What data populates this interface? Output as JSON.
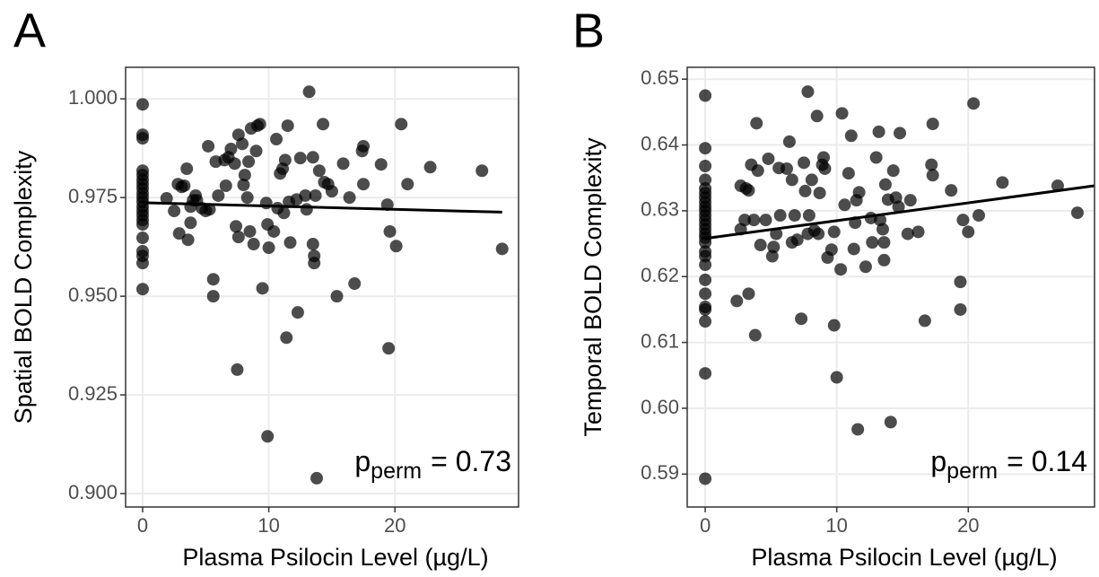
{
  "chart_data": [
    {
      "type": "scatter",
      "panel_label": "A",
      "xlabel": "Plasma Psilocin Level (µg/L)",
      "ylabel": "Spatial BOLD Complexity",
      "color": "#000000",
      "opacity": 0.7,
      "grid": true,
      "xlim": [
        -1.35,
        29.8
      ],
      "ylim": [
        0.8966,
        1.008
      ],
      "xticks": [
        0,
        10,
        20
      ],
      "yticks": [
        {
          "value": 0.9,
          "label": "0.900"
        },
        0.925,
        {
          "value": 0.95,
          "label": "0.950"
        },
        0.975,
        {
          "value": 1,
          "label": "1.000"
        }
      ],
      "x": [
        0,
        0,
        0,
        0,
        0,
        0,
        0,
        0,
        0,
        0,
        0,
        0,
        0,
        0,
        0,
        0,
        0,
        0,
        0,
        0,
        0,
        1.9,
        2.5,
        2.8,
        2.9,
        3.1,
        3.3,
        3.5,
        3.6,
        3.8,
        3.8,
        4.0,
        4.2,
        4.3,
        4.7,
        5.0,
        5.2,
        5.3,
        5.6,
        5.6,
        5.8,
        6.0,
        6.5,
        6.6,
        6.8,
        7.0,
        7.3,
        7.4,
        7.5,
        7.6,
        7.6,
        7.9,
        8.0,
        8.1,
        8.3,
        8.4,
        8.5,
        8.6,
        8.8,
        9.0,
        9.1,
        9.3,
        9.5,
        9.8,
        9.9,
        9.9,
        10.0,
        10.4,
        10.6,
        10.7,
        10.9,
        11.1,
        11.2,
        11.3,
        11.4,
        11.5,
        11.6,
        11.7,
        12.2,
        12.3,
        12.5,
        12.9,
        13.0,
        13.2,
        13.5,
        13.5,
        13.6,
        13.6,
        13.7,
        13.8,
        14.0,
        14.3,
        14.4,
        14.7,
        15.0,
        15.4,
        15.9,
        16.4,
        16.8,
        17.4,
        17.5,
        17.5,
        18.9,
        19.4,
        19.5,
        19.6,
        20.1,
        20.5,
        21.0,
        22.8,
        26.9,
        28.5
      ],
      "y": [
        0.9986,
        0.9909,
        0.99,
        0.9818,
        0.9807,
        0.9795,
        0.9784,
        0.9773,
        0.9761,
        0.975,
        0.9739,
        0.9727,
        0.9716,
        0.9705,
        0.9693,
        0.9682,
        0.9648,
        0.9614,
        0.9602,
        0.9584,
        0.9518,
        0.9748,
        0.9716,
        0.9784,
        0.9659,
        0.9777,
        0.978,
        0.9823,
        0.9643,
        0.9686,
        0.9727,
        0.9743,
        0.9755,
        0.9743,
        0.9723,
        0.9716,
        0.988,
        0.972,
        0.9543,
        0.95,
        0.9841,
        0.9755,
        0.9845,
        0.978,
        0.9852,
        0.9873,
        0.9836,
        0.9677,
        0.9314,
        0.9909,
        0.965,
        0.9886,
        0.9782,
        0.9807,
        0.975,
        0.9841,
        0.9664,
        0.9925,
        0.9632,
        0.9868,
        0.9932,
        0.9936,
        0.952,
        0.9736,
        0.9145,
        0.9682,
        0.9623,
        0.9664,
        0.9898,
        0.9723,
        0.9811,
        0.9823,
        0.9711,
        0.9845,
        0.9395,
        0.9932,
        0.9739,
        0.9636,
        0.9745,
        0.9459,
        0.985,
        0.9755,
        0.972,
        1.0018,
        0.9852,
        0.9632,
        0.9602,
        0.9584,
        0.9755,
        0.9039,
        0.9818,
        0.9936,
        0.9789,
        0.9784,
        0.9766,
        0.95,
        0.9836,
        0.975,
        0.9532,
        0.9868,
        0.988,
        0.9784,
        0.9834,
        0.9732,
        0.9368,
        0.9664,
        0.9627,
        0.9936,
        0.9784,
        0.9827,
        0.9818,
        0.962
      ],
      "trend_line": {
        "x": [
          0,
          28.5
        ],
        "y": [
          0.9737,
          0.9713
        ]
      },
      "annotation": {
        "base": "p",
        "subscript": "perm",
        "text": "= 0.73"
      }
    },
    {
      "type": "scatter",
      "panel_label": "B",
      "xlabel": "Plasma Psilocin Level (µg/L)",
      "ylabel": "Temporal BOLD Complexity",
      "color": "#000000",
      "opacity": 0.7,
      "grid": true,
      "xlim": [
        -1.37,
        29.6
      ],
      "ylim": [
        0.585,
        0.6518
      ],
      "xticks": [
        0,
        10,
        20
      ],
      "yticks": [
        0.59,
        {
          "value": 0.6,
          "label": "0.60"
        },
        0.61,
        0.62,
        0.63,
        0.64,
        0.65
      ],
      "x": [
        0,
        0,
        0,
        0,
        0,
        0,
        0,
        0,
        0,
        0,
        0,
        0,
        0,
        0,
        0,
        0,
        0,
        0,
        0,
        0,
        0,
        0,
        0,
        0,
        0,
        0,
        0,
        2.4,
        2.7,
        2.7,
        3.0,
        3.1,
        3.3,
        3.3,
        3.5,
        3.7,
        3.8,
        3.9,
        4.0,
        4.2,
        4.6,
        4.8,
        5.1,
        5.2,
        5.4,
        5.6,
        5.7,
        6.2,
        6.4,
        6.6,
        6.6,
        6.8,
        7.0,
        7.3,
        7.5,
        7.6,
        7.8,
        7.8,
        7.9,
        8.1,
        8.3,
        8.5,
        8.6,
        8.7,
        8.9,
        9.0,
        9.1,
        9.3,
        9.6,
        9.8,
        9.8,
        10.0,
        10.3,
        10.4,
        10.6,
        10.9,
        11.1,
        11.3,
        11.4,
        11.5,
        11.6,
        11.7,
        12.2,
        12.6,
        12.7,
        13.0,
        13.2,
        13.3,
        13.5,
        13.6,
        13.6,
        13.7,
        13.9,
        14.1,
        14.3,
        14.5,
        14.7,
        14.8,
        15.4,
        15.6,
        16.2,
        16.7,
        17.2,
        17.3,
        17.3,
        18.7,
        19.4,
        19.4,
        19.6,
        20.0,
        20.4,
        20.8,
        22.6,
        26.8,
        28.3
      ],
      "y": [
        0.6475,
        0.6395,
        0.6368,
        0.6347,
        0.6334,
        0.6327,
        0.632,
        0.6313,
        0.6306,
        0.63,
        0.6293,
        0.6286,
        0.6279,
        0.6272,
        0.6265,
        0.6259,
        0.6252,
        0.6238,
        0.6231,
        0.6218,
        0.6195,
        0.6174,
        0.6154,
        0.615,
        0.6132,
        0.6053,
        0.5893,
        0.6163,
        0.6272,
        0.6338,
        0.6286,
        0.6334,
        0.6331,
        0.6174,
        0.637,
        0.6286,
        0.6111,
        0.6433,
        0.6361,
        0.6248,
        0.6286,
        0.6379,
        0.6231,
        0.6245,
        0.6265,
        0.6365,
        0.6293,
        0.6364,
        0.6405,
        0.6252,
        0.6347,
        0.6293,
        0.6256,
        0.6136,
        0.6373,
        0.633,
        0.6481,
        0.6265,
        0.6293,
        0.6347,
        0.627,
        0.6444,
        0.6265,
        0.6327,
        0.637,
        0.6381,
        0.6364,
        0.6229,
        0.6241,
        0.6268,
        0.6126,
        0.6047,
        0.6211,
        0.6448,
        0.6309,
        0.6357,
        0.6414,
        0.6242,
        0.6282,
        0.6316,
        0.5968,
        0.6328,
        0.6215,
        0.6289,
        0.6252,
        0.6381,
        0.642,
        0.6286,
        0.6272,
        0.6252,
        0.6225,
        0.634,
        0.6317,
        0.5979,
        0.6361,
        0.632,
        0.6306,
        0.6418,
        0.6265,
        0.6316,
        0.6268,
        0.6133,
        0.637,
        0.6354,
        0.6432,
        0.6331,
        0.615,
        0.6192,
        0.6286,
        0.6268,
        0.6463,
        0.6293,
        0.6343,
        0.6338,
        0.6297
      ],
      "trend_line": {
        "x": [
          0,
          29.6
        ],
        "y": [
          0.6258,
          0.6338
        ]
      },
      "annotation": {
        "base": "p",
        "subscript": "perm",
        "text": "= 0.14"
      }
    }
  ]
}
